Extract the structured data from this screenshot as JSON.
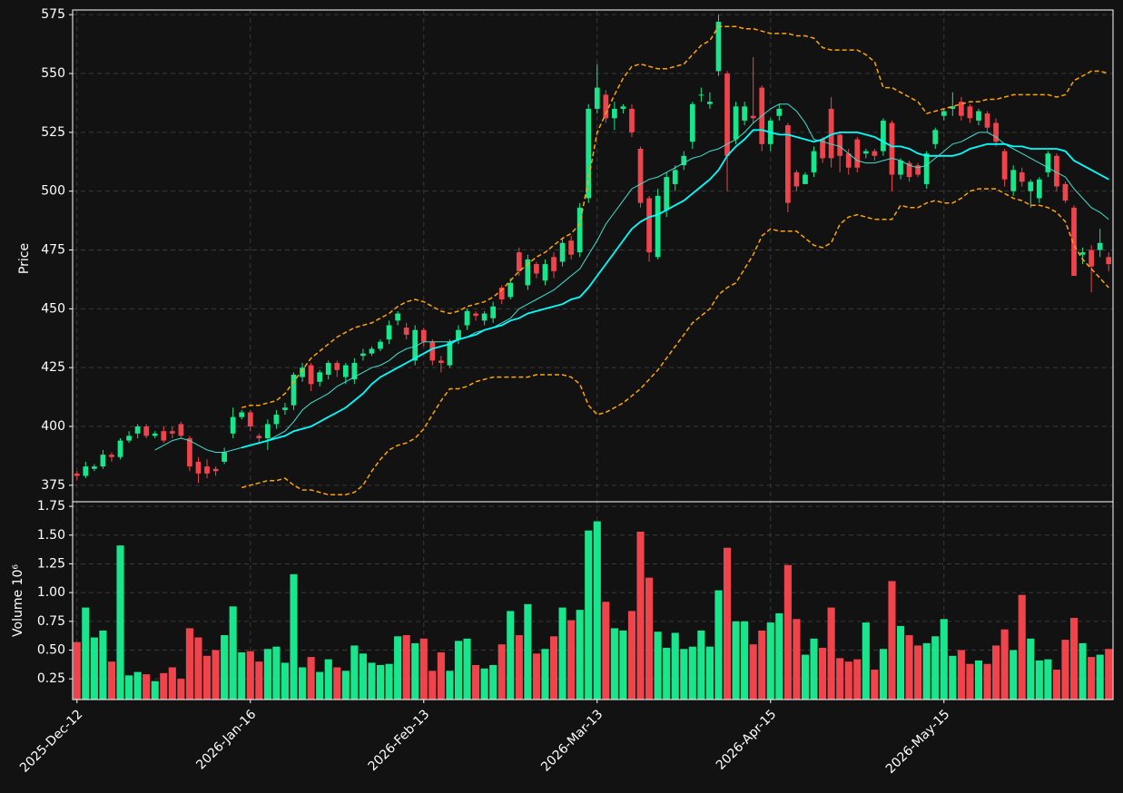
{
  "chart_data": {
    "type": "candlestick",
    "ylabel": "Price",
    "volume_ylabel": "Volume  10⁶",
    "categories": [
      "2025-Dec-12",
      null,
      null,
      null,
      null,
      null,
      null,
      null,
      null,
      null,
      null,
      null,
      null,
      null,
      null,
      null,
      null,
      null,
      null,
      null,
      "2026-Jan-16",
      null,
      null,
      null,
      null,
      null,
      null,
      null,
      null,
      null,
      null,
      null,
      null,
      null,
      null,
      null,
      null,
      null,
      null,
      null,
      "2026-Feb-13",
      null,
      null,
      null,
      null,
      null,
      null,
      null,
      null,
      null,
      null,
      null,
      null,
      null,
      null,
      null,
      null,
      null,
      null,
      null,
      "2026-Mar-13",
      null,
      null,
      null,
      null,
      null,
      null,
      null,
      null,
      null,
      null,
      null,
      null,
      null,
      null,
      null,
      null,
      null,
      null,
      null,
      "2026-Apr-15",
      null,
      null,
      null,
      null,
      null,
      null,
      null,
      null,
      null,
      null,
      null,
      null,
      null,
      null,
      null,
      null,
      null,
      null,
      null,
      "2026-May-15",
      null,
      null,
      null,
      null,
      null,
      null,
      null,
      null,
      null,
      null,
      null,
      null,
      null,
      null,
      null,
      null,
      null,
      null,
      null
    ],
    "open": [
      380,
      379,
      382,
      383,
      388,
      387,
      394,
      397,
      400,
      396,
      398,
      398,
      401,
      395,
      385,
      383,
      382,
      385,
      397,
      404,
      406,
      396,
      395,
      401,
      407,
      409,
      421,
      426,
      419,
      422,
      427,
      421,
      420,
      430,
      431,
      433,
      437,
      445,
      442,
      428,
      441,
      436,
      428,
      426,
      437,
      443,
      448,
      445,
      446,
      459,
      455,
      474,
      460,
      469,
      462,
      472,
      470,
      479,
      474,
      497,
      535,
      541,
      531,
      535,
      535,
      518,
      497,
      472,
      492,
      503,
      511,
      521,
      541,
      537,
      551,
      550,
      522,
      530,
      532,
      544,
      520,
      532,
      528,
      508,
      503,
      508,
      522,
      535,
      524,
      516,
      522,
      516,
      517,
      517,
      529,
      507,
      512,
      511,
      503,
      520,
      532,
      535,
      538,
      536,
      530,
      533,
      529,
      517,
      500,
      508,
      500,
      497,
      508,
      515,
      503,
      493,
      473,
      475,
      475,
      472
    ],
    "high": [
      381,
      385,
      384,
      390,
      389,
      395,
      398,
      401,
      401,
      398,
      400,
      400,
      402,
      396,
      387,
      386,
      383,
      391,
      408,
      407,
      407,
      397,
      403,
      407,
      410,
      423,
      427,
      427,
      424,
      428,
      428,
      427,
      429,
      433,
      434,
      437,
      445,
      449,
      444,
      443,
      442,
      437,
      430,
      437,
      443,
      450,
      449,
      449,
      453,
      460,
      463,
      476,
      473,
      470,
      471,
      474,
      480,
      481,
      495,
      537,
      554,
      543,
      538,
      537,
      537,
      519,
      498,
      501,
      508,
      511,
      517,
      538,
      544,
      542,
      575,
      551,
      538,
      538,
      557,
      545,
      531,
      537,
      529,
      509,
      508,
      519,
      523,
      540,
      525,
      518,
      523,
      518,
      518,
      531,
      530,
      514,
      513,
      512,
      517,
      527,
      535,
      542,
      540,
      537,
      535,
      534,
      531,
      518,
      511,
      510,
      505,
      506,
      517,
      516,
      504,
      494,
      476,
      477,
      484,
      474
    ],
    "low": [
      377,
      378,
      381,
      382,
      385,
      386,
      393,
      395,
      395,
      395,
      393,
      395,
      395,
      381,
      376,
      378,
      379,
      384,
      395,
      403,
      398,
      393,
      390,
      399,
      405,
      407,
      419,
      415,
      417,
      420,
      421,
      418,
      418,
      428,
      430,
      432,
      435,
      443,
      437,
      426,
      434,
      426,
      423,
      425,
      435,
      441,
      445,
      443,
      444,
      452,
      454,
      464,
      458,
      463,
      460,
      463,
      468,
      471,
      472,
      495,
      533,
      529,
      526,
      533,
      523,
      493,
      470,
      471,
      489,
      500,
      509,
      518,
      538,
      535,
      549,
      500,
      520,
      528,
      529,
      517,
      517,
      530,
      491,
      500,
      503,
      506,
      512,
      510,
      508,
      507,
      508,
      514,
      513,
      515,
      500,
      505,
      504,
      506,
      501,
      518,
      530,
      532,
      530,
      529,
      528,
      525,
      519,
      502,
      498,
      502,
      493,
      495,
      506,
      500,
      495,
      464,
      469,
      457,
      472,
      466
    ],
    "close": [
      379,
      383,
      383,
      388,
      387,
      394,
      396,
      400,
      396,
      397,
      394,
      397,
      396,
      383,
      380,
      380,
      381,
      389,
      404,
      406,
      400,
      395,
      401,
      405,
      408,
      422,
      425,
      418,
      423,
      427,
      424,
      426,
      427,
      431,
      433,
      436,
      443,
      448,
      439,
      441,
      436,
      428,
      427,
      436,
      441,
      449,
      447,
      448,
      451,
      454,
      461,
      466,
      471,
      465,
      469,
      466,
      478,
      473,
      493,
      535,
      544,
      531,
      535,
      536,
      525,
      495,
      474,
      498,
      506,
      509,
      515,
      537,
      541,
      538,
      572,
      515,
      536,
      536,
      531,
      520,
      530,
      535,
      495,
      502,
      507,
      517,
      514,
      514,
      515,
      510,
      510,
      517,
      515,
      530,
      507,
      513,
      506,
      507,
      516,
      526,
      534,
      536,
      532,
      531,
      534,
      527,
      521,
      505,
      509,
      504,
      504,
      505,
      516,
      502,
      496,
      464,
      474,
      468,
      478,
      469
    ],
    "volume": [
      0.57,
      0.87,
      0.61,
      0.67,
      0.4,
      1.41,
      0.28,
      0.31,
      0.29,
      0.23,
      0.3,
      0.35,
      0.25,
      0.69,
      0.61,
      0.45,
      0.5,
      0.63,
      0.88,
      0.48,
      0.49,
      0.4,
      0.51,
      0.53,
      0.39,
      1.16,
      0.35,
      0.44,
      0.31,
      0.42,
      0.35,
      0.32,
      0.54,
      0.47,
      0.39,
      0.37,
      0.38,
      0.62,
      0.63,
      0.56,
      0.6,
      0.32,
      0.48,
      0.32,
      0.58,
      0.6,
      0.37,
      0.34,
      0.37,
      0.55,
      0.84,
      0.63,
      0.9,
      0.47,
      0.51,
      0.62,
      0.87,
      0.76,
      0.85,
      1.54,
      1.62,
      0.92,
      0.69,
      0.67,
      0.84,
      1.53,
      1.13,
      0.66,
      0.52,
      0.65,
      0.51,
      0.53,
      0.67,
      0.53,
      1.02,
      1.39,
      0.75,
      0.75,
      0.55,
      0.67,
      0.74,
      0.82,
      1.24,
      0.77,
      0.46,
      0.6,
      0.52,
      0.87,
      0.43,
      0.4,
      0.42,
      0.74,
      0.33,
      0.51,
      1.1,
      0.71,
      0.63,
      0.54,
      0.56,
      0.62,
      0.77,
      0.45,
      0.5,
      0.38,
      0.41,
      0.38,
      0.54,
      0.68,
      0.5,
      0.98,
      0.6,
      0.41,
      0.42,
      0.33,
      0.59,
      0.78,
      0.56,
      0.44,
      0.46,
      0.51
    ],
    "series": [
      {
        "color": "#40e0d0",
        "width": 1,
        "values": [
          null,
          null,
          null,
          null,
          null,
          null,
          null,
          null,
          null,
          390,
          392,
          394,
          395,
          394,
          392,
          390,
          389,
          389,
          390,
          391,
          392,
          393,
          394,
          396,
          398,
          402,
          407,
          410,
          412,
          414,
          417,
          419,
          421,
          423,
          425,
          426,
          428,
          431,
          433,
          434,
          436,
          436,
          436,
          436,
          437,
          438,
          440,
          441,
          442,
          444,
          446,
          450,
          452,
          454,
          456,
          458,
          461,
          464,
          467,
          473,
          479,
          486,
          491,
          496,
          501,
          503,
          505,
          506,
          508,
          510,
          512,
          514,
          515,
          517,
          518,
          520,
          522,
          525,
          529,
          532,
          535,
          537,
          537,
          534,
          529,
          522,
          521,
          520,
          519,
          516,
          513,
          512,
          512,
          513,
          514,
          513,
          511,
          510,
          511,
          514,
          517,
          520,
          521,
          523,
          525,
          525,
          523,
          520,
          518,
          516,
          514,
          512,
          510,
          508,
          506,
          501,
          497,
          493,
          491,
          488
        ]
      },
      {
        "color": "#00ffff",
        "width": 1.8,
        "values": [
          null,
          null,
          null,
          null,
          null,
          null,
          null,
          null,
          null,
          null,
          null,
          null,
          null,
          null,
          null,
          null,
          null,
          null,
          null,
          391,
          392,
          393,
          394,
          395,
          396,
          398,
          399,
          400,
          402,
          404,
          406,
          408,
          411,
          414,
          418,
          421,
          423,
          425,
          427,
          429,
          431,
          433,
          434,
          435,
          437,
          438,
          439,
          441,
          442,
          443,
          445,
          446,
          448,
          449,
          450,
          451,
          452,
          454,
          455,
          459,
          464,
          469,
          474,
          479,
          484,
          487,
          489,
          490,
          492,
          494,
          496,
          499,
          502,
          505,
          509,
          515,
          519,
          522,
          526,
          526,
          525,
          524,
          524,
          523,
          522,
          521,
          522,
          524,
          525,
          525,
          525,
          524,
          523,
          521,
          519,
          519,
          518,
          516,
          515,
          515,
          515,
          515,
          516,
          518,
          519,
          520,
          520,
          520,
          519,
          519,
          518,
          518,
          518,
          518,
          517,
          513,
          511,
          509,
          507,
          505
        ]
      },
      {
        "color": "#ffa500",
        "width": 1.5,
        "dash": "5,3",
        "values": [
          null,
          null,
          null,
          null,
          null,
          null,
          null,
          null,
          null,
          null,
          null,
          null,
          null,
          null,
          null,
          null,
          null,
          null,
          null,
          408,
          409,
          409,
          410,
          411,
          414,
          419,
          424,
          429,
          432,
          435,
          438,
          440,
          442,
          443,
          444,
          446,
          448,
          451,
          453,
          454,
          453,
          451,
          449,
          448,
          449,
          451,
          452,
          453,
          455,
          458,
          462,
          466,
          469,
          472,
          474,
          477,
          480,
          482,
          486,
          505,
          525,
          533,
          541,
          548,
          553,
          554,
          553,
          552,
          552,
          553,
          554,
          558,
          562,
          564,
          570,
          570,
          570,
          569,
          569,
          568,
          567,
          567,
          567,
          566,
          566,
          565,
          561,
          560,
          560,
          560,
          560,
          558,
          555,
          544,
          544,
          542,
          540,
          538,
          533,
          534,
          535,
          536,
          537,
          538,
          538,
          539,
          539,
          540,
          541,
          541,
          541,
          541,
          541,
          540,
          541,
          547,
          549,
          551,
          551,
          550
        ]
      },
      {
        "color": "#ffa500",
        "width": 1.5,
        "dash": "5,3",
        "values": [
          null,
          null,
          null,
          null,
          null,
          null,
          null,
          null,
          null,
          null,
          null,
          null,
          null,
          null,
          null,
          null,
          null,
          null,
          null,
          374,
          375,
          376,
          377,
          377,
          378,
          375,
          373,
          373,
          372,
          371,
          371,
          371,
          372,
          375,
          381,
          386,
          390,
          392,
          393,
          395,
          399,
          405,
          411,
          416,
          416,
          417,
          419,
          420,
          421,
          421,
          421,
          421,
          421,
          422,
          422,
          422,
          422,
          421,
          418,
          409,
          405,
          406,
          408,
          410,
          413,
          416,
          420,
          424,
          429,
          434,
          439,
          444,
          447,
          450,
          456,
          459,
          461,
          467,
          473,
          481,
          484,
          483,
          483,
          483,
          480,
          477,
          476,
          478,
          486,
          489,
          490,
          489,
          488,
          488,
          488,
          494,
          493,
          493,
          495,
          496,
          495,
          495,
          497,
          500,
          501,
          501,
          501,
          499,
          497,
          496,
          494,
          494,
          493,
          491,
          487,
          477,
          471,
          467,
          463,
          459
        ]
      }
    ],
    "up_color": "#19e68c",
    "down_color": "#f0444c",
    "ylim": [
      368,
      577
    ],
    "yticks": [
      375,
      400,
      425,
      450,
      475,
      500,
      525,
      550,
      575
    ],
    "volume_ylim": [
      0.07,
      1.79
    ],
    "volume_yticks": [
      0.25,
      {
        "value": 0.5,
        "label": "0.50"
      },
      0.75,
      {
        "value": 1,
        "label": "1.00"
      },
      1.25,
      {
        "value": 1.5,
        "label": "1.50"
      },
      1.75
    ],
    "grid": true
  }
}
